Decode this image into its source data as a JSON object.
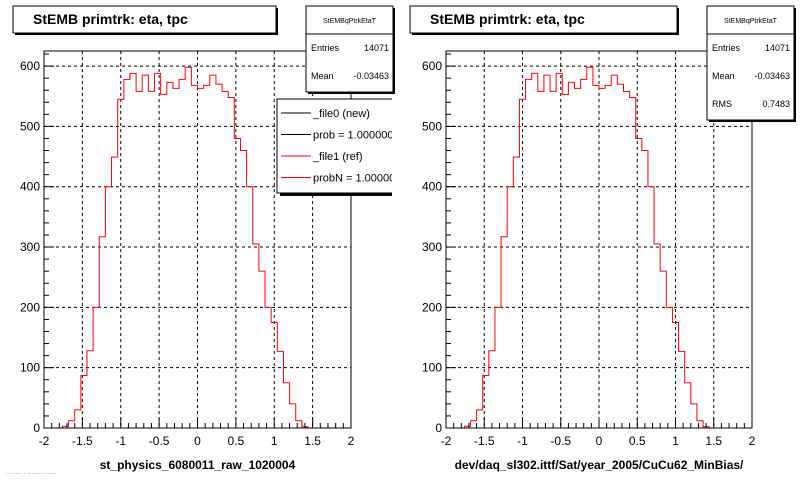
{
  "left": {
    "title": "StEMB primtrk: eta, tpc",
    "xlabel": "st_physics_6080011_raw_1020004",
    "stats": {
      "name": "StEMBqPtrkEtaT",
      "rows": [
        {
          "label": "Entries",
          "value": "14071"
        },
        {
          "label": "Mean",
          "value": "-0.03463"
        }
      ]
    },
    "legend": [
      {
        "label": "_file0 (new)",
        "color": "#000000"
      },
      {
        "label": "prob = 1.000000",
        "color": "#000000"
      },
      {
        "label": "_file1 (ref)",
        "color": "#ff0000"
      },
      {
        "label": "probN = 1.000000",
        "color": "#ff0000"
      }
    ]
  },
  "right": {
    "title": "StEMB primtrk: eta, tpc",
    "xlabel": "dev/daq_sl302.ittf/Sat/year_2005/CuCu62_MinBias/",
    "stats": {
      "name": "StEMBqPtrkEtaT",
      "rows": [
        {
          "label": "Entries",
          "value": "14071"
        },
        {
          "label": "Mean",
          "value": "-0.03463"
        },
        {
          "label": "RMS",
          "value": "0.7483"
        }
      ]
    }
  },
  "footer_text": "........ . ...............",
  "colors": {
    "hist": "#ff0000",
    "frame": "#000000",
    "grid": "#000000",
    "pad": "#ffffff"
  },
  "chart_data": [
    {
      "type": "histogram",
      "title": "StEMB primtrk: eta, tpc",
      "xlabel": "st_physics_6080011_raw_1020004",
      "ylabel": "",
      "xlim": [
        -2,
        2
      ],
      "ylim": [
        0,
        625
      ],
      "grid": true,
      "legend_position": "top-right",
      "xticks": [
        "-2",
        "-1.5",
        "-1",
        "-0.5",
        "0",
        "0.5",
        "1",
        "1.5",
        "2"
      ],
      "yticks": [
        "0",
        "100",
        "200",
        "300",
        "400",
        "500",
        "600"
      ],
      "bin_edges_start": -2.0,
      "bin_width": 0.08,
      "values": [
        0,
        0,
        0,
        3,
        12,
        30,
        87,
        128,
        200,
        317,
        400,
        449,
        545,
        578,
        588,
        558,
        585,
        558,
        588,
        553,
        573,
        563,
        578,
        598,
        568,
        563,
        568,
        585,
        570,
        558,
        548,
        480,
        460,
        400,
        305,
        260,
        200,
        175,
        127,
        75,
        40,
        12,
        2,
        0,
        0,
        0,
        0,
        0,
        0,
        0
      ]
    },
    {
      "type": "histogram",
      "title": "StEMB primtrk: eta, tpc",
      "xlabel": "dev/daq_sl302.ittf/Sat/year_2005/CuCu62_MinBias/",
      "ylabel": "",
      "xlim": [
        -2,
        2
      ],
      "ylim": [
        0,
        625
      ],
      "grid": true,
      "xticks": [
        "-2",
        "-1.5",
        "-1",
        "-0.5",
        "0",
        "0.5",
        "1",
        "1.5",
        "2"
      ],
      "yticks": [
        "0",
        "100",
        "200",
        "300",
        "400",
        "500",
        "600"
      ],
      "bin_edges_start": -2.0,
      "bin_width": 0.08,
      "values": [
        0,
        0,
        0,
        3,
        12,
        30,
        87,
        128,
        200,
        317,
        400,
        449,
        545,
        578,
        588,
        558,
        585,
        558,
        588,
        553,
        573,
        563,
        578,
        598,
        568,
        563,
        568,
        585,
        570,
        558,
        548,
        480,
        460,
        400,
        305,
        260,
        200,
        175,
        127,
        75,
        40,
        12,
        2,
        0,
        0,
        0,
        0,
        0,
        0,
        0
      ]
    }
  ]
}
